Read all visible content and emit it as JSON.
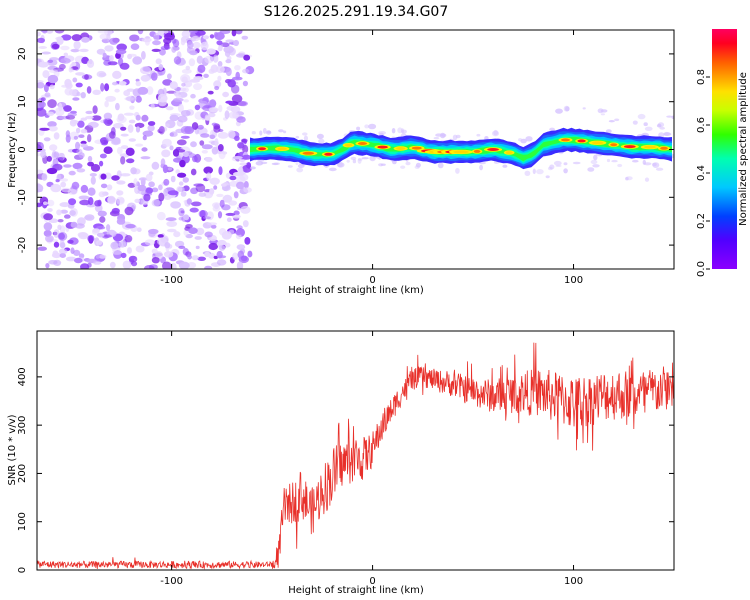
{
  "title": "S126.2025.291.19.34.G07",
  "chart_data": [
    {
      "type": "heatmap",
      "xlabel": "Height of straight line (km)",
      "ylabel": "Frequency (Hz)",
      "xlim": [
        -167,
        150
      ],
      "ylim": [
        -25,
        25
      ],
      "xticks": [
        -100,
        0,
        100
      ],
      "yticks": [
        -20,
        -10,
        0,
        10,
        20
      ],
      "noise_region_x": [
        -167,
        -61
      ],
      "ridge": {
        "x": [
          -61,
          -50,
          -40,
          -30,
          -20,
          -15,
          -10,
          0,
          10,
          20,
          30,
          40,
          50,
          60,
          70,
          75,
          80,
          85,
          90,
          95,
          100,
          110,
          120,
          130,
          140,
          150
        ],
        "freq": [
          0,
          0.3,
          0,
          -1,
          -1,
          0,
          1.5,
          1,
          0,
          0.5,
          -0.5,
          -0.5,
          -0.5,
          0,
          -0.8,
          -1.8,
          -1,
          1,
          1.5,
          2,
          2,
          1.5,
          1,
          0.5,
          0.5,
          0
        ]
      },
      "colorbar": {
        "label": "Normalized spectral amplitude",
        "range": [
          0,
          1
        ],
        "ticks": [
          "0.0",
          "0.2",
          "0.4",
          "0.6",
          "0.8"
        ]
      }
    },
    {
      "type": "line",
      "xlabel": "Height of straight line (km)",
      "ylabel": "SNR (10 * v/v)",
      "xlim": [
        -167,
        150
      ],
      "ylim": [
        0,
        495
      ],
      "xticks": [
        -100,
        0,
        100
      ],
      "yticks": [
        0,
        100,
        200,
        300,
        400
      ],
      "series": [
        {
          "name": "SNR",
          "color": "#e8302a",
          "x": [
            -167,
            -150,
            -120,
            -100,
            -80,
            -60,
            -52,
            -48,
            -46,
            -44,
            -40,
            -35,
            -30,
            -25,
            -20,
            -15,
            -10,
            -5,
            0,
            5,
            10,
            15,
            20,
            25,
            30,
            40,
            50,
            60,
            70,
            80,
            90,
            100,
            110,
            120,
            130,
            140,
            150
          ],
          "mean": [
            12,
            11,
            11,
            11,
            11,
            11,
            11,
            14,
            60,
            130,
            140,
            155,
            120,
            165,
            195,
            220,
            230,
            230,
            250,
            300,
            335,
            370,
            395,
            400,
            395,
            385,
            370,
            360,
            365,
            370,
            360,
            345,
            355,
            365,
            360,
            370,
            380
          ],
          "spread": [
            8,
            8,
            8,
            8,
            8,
            8,
            6,
            12,
            40,
            45,
            50,
            55,
            55,
            60,
            65,
            55,
            55,
            50,
            40,
            35,
            30,
            25,
            25,
            25,
            25,
            30,
            35,
            40,
            45,
            55,
            60,
            65,
            60,
            60,
            55,
            55,
            50
          ]
        }
      ]
    }
  ]
}
